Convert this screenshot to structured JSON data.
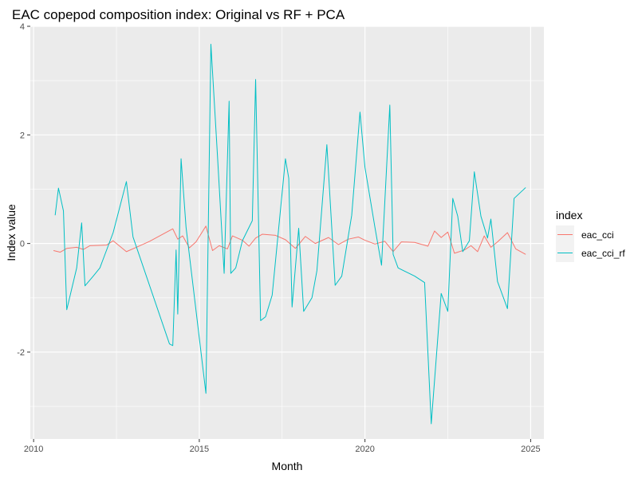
{
  "chart_data": {
    "type": "line",
    "title": "EAC copepod composition index: Original vs RF + PCA",
    "xlabel": "Month",
    "ylabel": "Index value",
    "xlim": [
      2009.9,
      2025.4
    ],
    "ylim": [
      -3.6,
      4.0
    ],
    "x_ticks": [
      2010,
      2015,
      2020,
      2025
    ],
    "x_tick_labels": [
      "2010",
      "2015",
      "2020",
      "2025"
    ],
    "y_ticks": [
      -2,
      0,
      2,
      4
    ],
    "y_tick_labels": [
      "-2",
      "0",
      "2",
      "4"
    ],
    "grid": true,
    "legend": {
      "title": "index",
      "position": "right"
    },
    "series": [
      {
        "name": "eac_cci",
        "color": "#F8766D",
        "points": [
          [
            2010.6,
            -0.13
          ],
          [
            2010.8,
            -0.16
          ],
          [
            2011.0,
            -0.09
          ],
          [
            2011.3,
            -0.07
          ],
          [
            2011.5,
            -0.11
          ],
          [
            2011.7,
            -0.04
          ],
          [
            2012.2,
            -0.03
          ],
          [
            2012.4,
            0.05
          ],
          [
            2012.8,
            -0.15
          ],
          [
            2013.1,
            -0.07
          ],
          [
            2013.5,
            0.04
          ],
          [
            2014.2,
            0.27
          ],
          [
            2014.35,
            0.08
          ],
          [
            2014.5,
            0.14
          ],
          [
            2014.7,
            -0.08
          ],
          [
            2014.9,
            0.03
          ],
          [
            2015.2,
            0.32
          ],
          [
            2015.4,
            -0.13
          ],
          [
            2015.6,
            -0.04
          ],
          [
            2015.85,
            -0.1
          ],
          [
            2016.0,
            0.14
          ],
          [
            2016.3,
            0.06
          ],
          [
            2016.5,
            -0.05
          ],
          [
            2016.7,
            0.1
          ],
          [
            2016.9,
            0.17
          ],
          [
            2017.3,
            0.15
          ],
          [
            2017.6,
            0.07
          ],
          [
            2017.9,
            -0.09
          ],
          [
            2018.2,
            0.13
          ],
          [
            2018.5,
            0.0
          ],
          [
            2018.9,
            0.11
          ],
          [
            2019.2,
            -0.02
          ],
          [
            2019.5,
            0.08
          ],
          [
            2019.8,
            0.12
          ],
          [
            2020.0,
            0.06
          ],
          [
            2020.3,
            -0.01
          ],
          [
            2020.6,
            0.04
          ],
          [
            2020.85,
            -0.15
          ],
          [
            2021.1,
            0.03
          ],
          [
            2021.5,
            0.02
          ],
          [
            2021.9,
            -0.05
          ],
          [
            2022.1,
            0.23
          ],
          [
            2022.3,
            0.11
          ],
          [
            2022.5,
            0.21
          ],
          [
            2022.7,
            -0.18
          ],
          [
            2023.0,
            -0.12
          ],
          [
            2023.2,
            -0.04
          ],
          [
            2023.4,
            -0.15
          ],
          [
            2023.6,
            0.14
          ],
          [
            2023.8,
            -0.07
          ],
          [
            2024.0,
            0.03
          ],
          [
            2024.3,
            0.2
          ],
          [
            2024.55,
            -0.1
          ],
          [
            2024.85,
            -0.2
          ]
        ]
      },
      {
        "name": "eac_cci_rf",
        "color": "#00BFC4",
        "points": [
          [
            2010.65,
            0.52
          ],
          [
            2010.75,
            1.02
          ],
          [
            2010.9,
            0.6
          ],
          [
            2011.0,
            -1.22
          ],
          [
            2011.3,
            -0.45
          ],
          [
            2011.45,
            0.38
          ],
          [
            2011.55,
            -0.78
          ],
          [
            2011.8,
            -0.6
          ],
          [
            2012.0,
            -0.45
          ],
          [
            2012.4,
            0.2
          ],
          [
            2012.8,
            1.14
          ],
          [
            2013.0,
            0.12
          ],
          [
            2014.1,
            -1.85
          ],
          [
            2014.2,
            -1.88
          ],
          [
            2014.3,
            -0.12
          ],
          [
            2014.35,
            -1.3
          ],
          [
            2014.45,
            1.56
          ],
          [
            2014.6,
            0.3
          ],
          [
            2015.2,
            -2.76
          ],
          [
            2015.35,
            3.67
          ],
          [
            2015.55,
            1.6
          ],
          [
            2015.75,
            -0.55
          ],
          [
            2015.9,
            2.62
          ],
          [
            2015.95,
            -0.55
          ],
          [
            2016.1,
            -0.45
          ],
          [
            2016.3,
            0.05
          ],
          [
            2016.6,
            0.42
          ],
          [
            2016.7,
            3.02
          ],
          [
            2016.85,
            -1.42
          ],
          [
            2017.0,
            -1.35
          ],
          [
            2017.2,
            -0.95
          ],
          [
            2017.6,
            1.56
          ],
          [
            2017.7,
            1.2
          ],
          [
            2017.8,
            -1.17
          ],
          [
            2018.0,
            0.28
          ],
          [
            2018.15,
            -1.25
          ],
          [
            2018.4,
            -1.0
          ],
          [
            2018.55,
            -0.5
          ],
          [
            2018.85,
            1.82
          ],
          [
            2019.1,
            -0.77
          ],
          [
            2019.3,
            -0.6
          ],
          [
            2019.6,
            0.52
          ],
          [
            2019.85,
            2.42
          ],
          [
            2020.0,
            1.4
          ],
          [
            2020.3,
            0.3
          ],
          [
            2020.5,
            -0.4
          ],
          [
            2020.75,
            2.55
          ],
          [
            2020.85,
            -0.2
          ],
          [
            2021.0,
            -0.45
          ],
          [
            2021.5,
            -0.6
          ],
          [
            2021.8,
            -0.72
          ],
          [
            2022.0,
            -3.32
          ],
          [
            2022.3,
            -0.92
          ],
          [
            2022.5,
            -1.25
          ],
          [
            2022.65,
            0.83
          ],
          [
            2022.8,
            0.5
          ],
          [
            2022.95,
            -0.15
          ],
          [
            2023.15,
            0.05
          ],
          [
            2023.3,
            1.32
          ],
          [
            2023.5,
            0.5
          ],
          [
            2023.7,
            0.1
          ],
          [
            2023.8,
            0.45
          ],
          [
            2024.0,
            -0.7
          ],
          [
            2024.3,
            -1.2
          ],
          [
            2024.5,
            0.83
          ],
          [
            2024.85,
            1.03
          ]
        ]
      }
    ]
  }
}
